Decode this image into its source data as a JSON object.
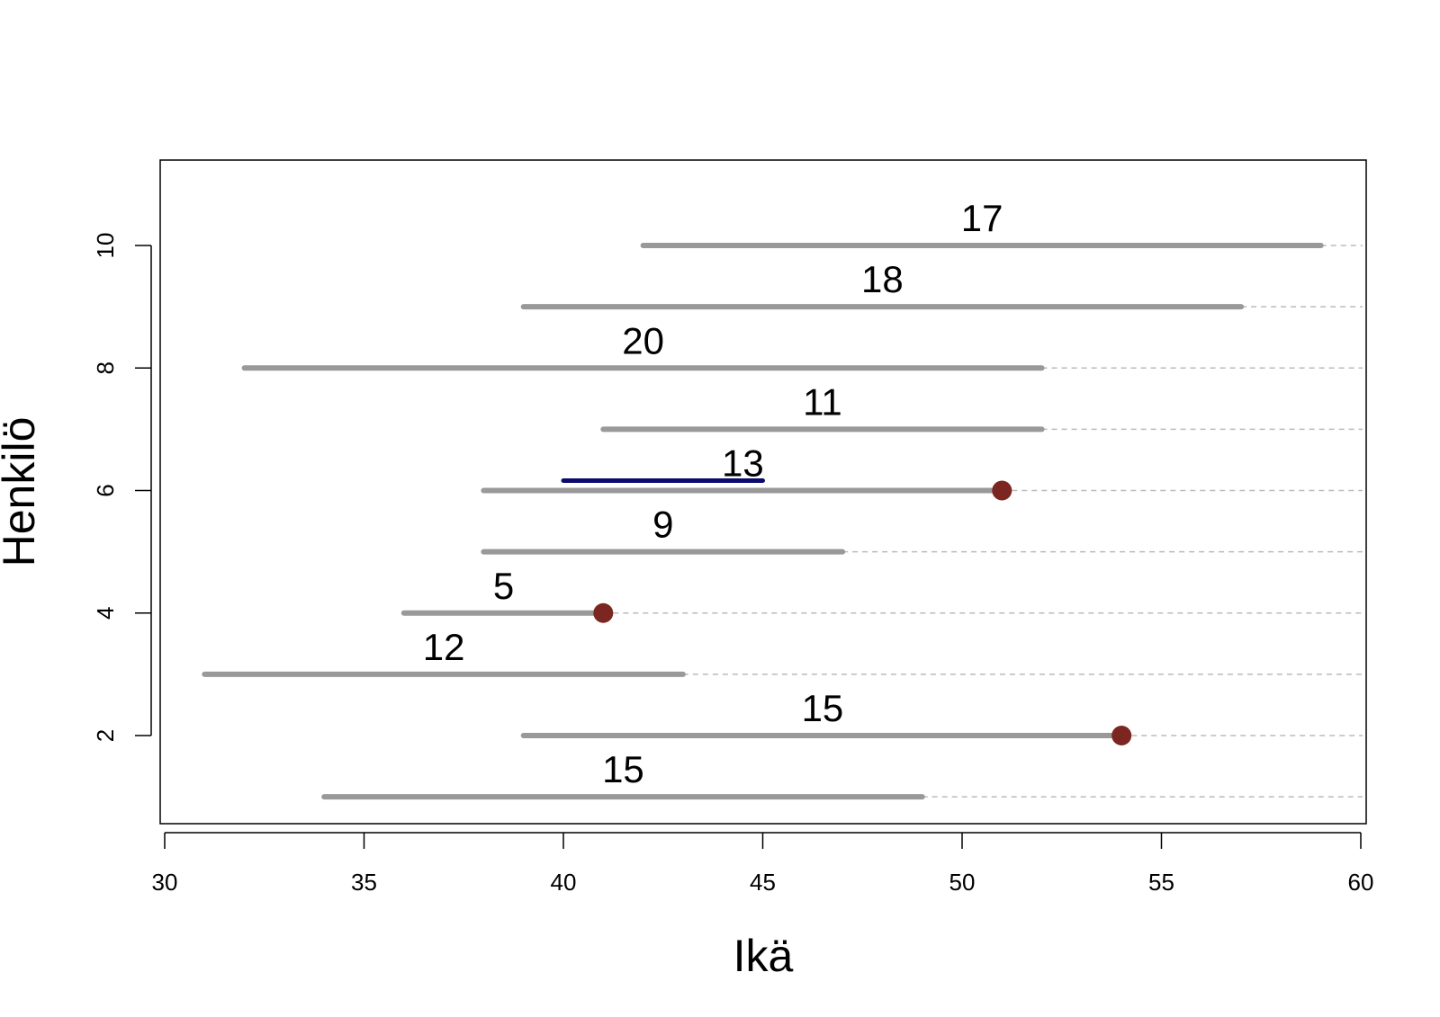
{
  "chart_data": {
    "type": "lifeline",
    "title": "",
    "xlabel": "Ikä",
    "ylabel": "Henkilö",
    "xlim": [
      30,
      60
    ],
    "ylim": [
      0.6,
      11.4
    ],
    "xticks": [
      30,
      35,
      40,
      45,
      50,
      55,
      60
    ],
    "yticks": [
      2,
      4,
      6,
      8,
      10
    ],
    "grid": false,
    "colors": {
      "segment": "#999999",
      "dashed": "#bbbbbb",
      "event": "#7b2620",
      "highlight": "#0b0b6e"
    },
    "persons": [
      {
        "id": 1,
        "start": 34,
        "end": 49,
        "label": "15",
        "event": false
      },
      {
        "id": 2,
        "start": 39,
        "end": 54,
        "label": "15",
        "event": true
      },
      {
        "id": 3,
        "start": 31,
        "end": 43,
        "label": "12",
        "event": false
      },
      {
        "id": 4,
        "start": 36,
        "end": 41,
        "label": "5",
        "event": true
      },
      {
        "id": 5,
        "start": 38,
        "end": 47,
        "label": "9",
        "event": false
      },
      {
        "id": 6,
        "start": 38,
        "end": 51,
        "label": "13",
        "event": true
      },
      {
        "id": 7,
        "start": 41,
        "end": 52,
        "label": "11",
        "event": false
      },
      {
        "id": 8,
        "start": 32,
        "end": 52,
        "label": "20",
        "event": false
      },
      {
        "id": 9,
        "start": 39,
        "end": 57,
        "label": "18",
        "event": false
      },
      {
        "id": 10,
        "start": 42,
        "end": 59,
        "label": "17",
        "event": false
      }
    ],
    "highlight": {
      "person": 6,
      "start": 40,
      "end": 45
    }
  }
}
